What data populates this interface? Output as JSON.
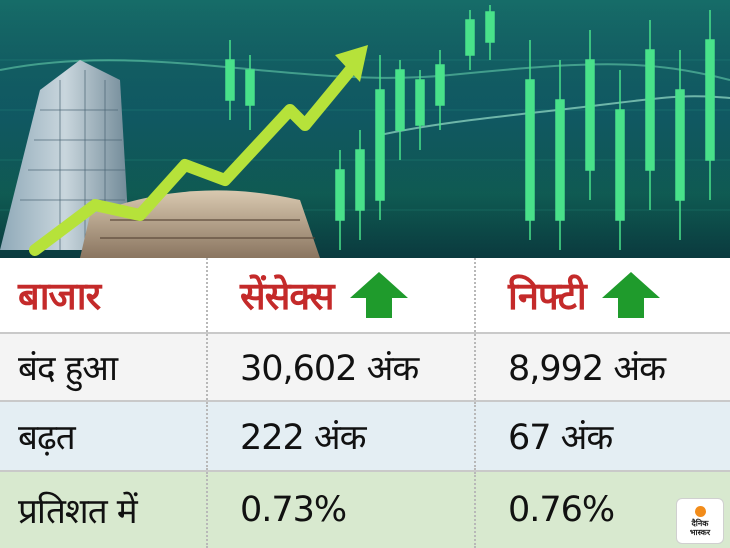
{
  "banner": {
    "accent_colors": {
      "arrow": "#b6e23a",
      "candles": "#49e28a",
      "sky": "#0a2e4a"
    }
  },
  "table": {
    "headers": [
      "बाजार",
      "सेंसेक्स",
      "निफ्टी"
    ],
    "header_arrow_icon": "up-arrow-icon",
    "header_arrow_color": "#1f9b2c",
    "rows": [
      {
        "label": "बंद हुआ",
        "sensex": "30,602 अंक",
        "nifty": "8,992 अंक"
      },
      {
        "label": "बढ़त",
        "sensex": "222 अंक",
        "nifty": "67 अंक"
      },
      {
        "label": "प्रतिशत में",
        "sensex": "0.73%",
        "nifty": "0.76%"
      }
    ]
  },
  "logo": {
    "line1": "दैनिक",
    "line2": "भास्कर"
  }
}
